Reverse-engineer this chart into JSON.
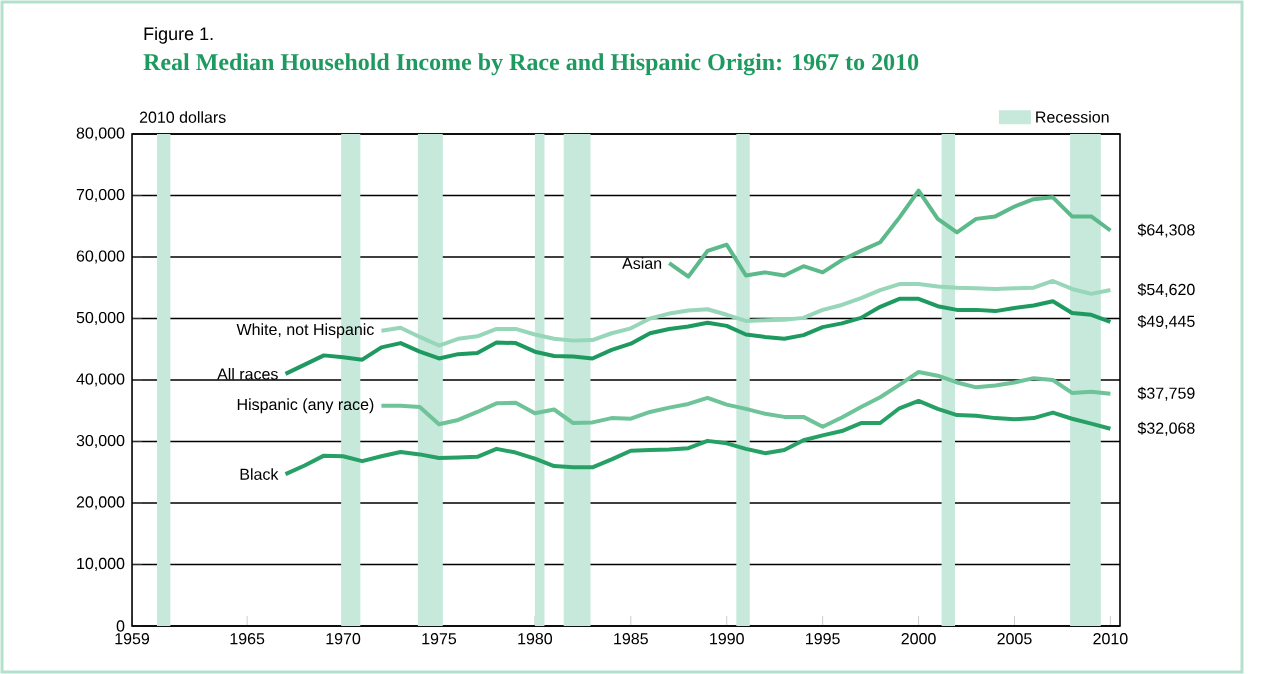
{
  "chart_data": {
    "type": "line",
    "title": "Real Median Household Income by Race and Hispanic Origin: 1967 to 2010",
    "ylabel": "2010 dollars",
    "annotations": [
      "Figure 1."
    ],
    "xlim": [
      1959,
      2010.5
    ],
    "xticks": [
      1959,
      1965,
      1970,
      1975,
      1980,
      1985,
      1990,
      1995,
      2000,
      2005,
      2010
    ],
    "ylim": [
      0,
      80000
    ],
    "yticks": [
      0,
      {
        "value": 10000,
        "label": "10,000"
      },
      {
        "value": 20000,
        "label": "20,000"
      },
      {
        "value": 30000,
        "label": "30,000"
      },
      {
        "value": 40000,
        "label": "40,000"
      },
      {
        "value": 50000,
        "label": "50,000"
      },
      {
        "value": 60000,
        "label": "60,000"
      },
      {
        "value": 70000,
        "label": "70,000"
      },
      {
        "value": 80000,
        "label": "80,000"
      }
    ],
    "grid": "y",
    "legend": "top right",
    "marker": "none",
    "line_style": "solid",
    "bands": [
      {
        "axis": "x",
        "from": 1960.3,
        "to": 1961.0,
        "label": "Recession",
        "color": "#c6e9dc"
      },
      {
        "axis": "x",
        "from": 1969.9,
        "to": 1970.9,
        "color": "#c6e9dc"
      },
      {
        "axis": "x",
        "from": 1973.9,
        "to": 1975.2,
        "color": "#c6e9dc"
      },
      {
        "axis": "x",
        "from": 1980.0,
        "to": 1980.5,
        "color": "#c6e9dc"
      },
      {
        "axis": "x",
        "from": 1981.5,
        "to": 1982.9,
        "color": "#c6e9dc"
      },
      {
        "axis": "x",
        "from": 1990.5,
        "to": 1991.2,
        "color": "#c6e9dc"
      },
      {
        "axis": "x",
        "from": 2001.2,
        "to": 2001.9,
        "color": "#c6e9dc"
      },
      {
        "axis": "x",
        "from": 2007.9,
        "to": 2009.5,
        "color": "#c6e9dc"
      }
    ],
    "series": [
      {
        "name": "Asian",
        "color": "#5cb98a",
        "x": [
          1987,
          1988,
          1989,
          1990,
          1991,
          1992,
          1993,
          1994,
          1995,
          1996,
          1997,
          1998,
          1999,
          2000,
          2001,
          2002,
          2003,
          2004,
          2005,
          2006,
          2007,
          2008,
          2009,
          2010
        ],
        "values": [
          59000,
          56800,
          61000,
          62000,
          57000,
          57500,
          57000,
          58500,
          57500,
          59500,
          61000,
          62400,
          66400,
          70800,
          66200,
          64000,
          66200,
          66600,
          68200,
          69400,
          69700,
          66600,
          66600,
          64308
        ],
        "value_labels": [
          null,
          null,
          null,
          null,
          null,
          null,
          null,
          null,
          null,
          null,
          null,
          null,
          null,
          null,
          null,
          null,
          null,
          null,
          null,
          null,
          null,
          null,
          null,
          "$64,308"
        ]
      },
      {
        "name": "White, not Hispanic",
        "color": "#97d6b8",
        "x": [
          1972,
          1973,
          1974,
          1975,
          1976,
          1977,
          1978,
          1979,
          1980,
          1981,
          1982,
          1983,
          1984,
          1985,
          1986,
          1987,
          1988,
          1989,
          1990,
          1991,
          1992,
          1993,
          1994,
          1995,
          1996,
          1997,
          1998,
          1999,
          2000,
          2001,
          2002,
          2003,
          2004,
          2005,
          2006,
          2007,
          2008,
          2009,
          2010
        ],
        "values": [
          48000,
          48500,
          47000,
          45600,
          46700,
          47100,
          48300,
          48300,
          47400,
          46700,
          46400,
          46500,
          47600,
          48400,
          50000,
          50800,
          51300,
          51500,
          50600,
          49600,
          49700,
          49800,
          50100,
          51400,
          52200,
          53300,
          54600,
          55600,
          55600,
          55200,
          55000,
          54900,
          54800,
          54900,
          55000,
          56100,
          54800,
          54000,
          54620
        ],
        "value_labels": [
          null,
          null,
          null,
          null,
          null,
          null,
          null,
          null,
          null,
          null,
          null,
          null,
          null,
          null,
          null,
          null,
          null,
          null,
          null,
          null,
          null,
          null,
          null,
          null,
          null,
          null,
          null,
          null,
          null,
          null,
          null,
          null,
          null,
          null,
          null,
          null,
          null,
          null,
          "$54,620"
        ]
      },
      {
        "name": "All races",
        "color": "#1e9a60",
        "x": [
          1967,
          1968,
          1969,
          1970,
          1971,
          1972,
          1973,
          1974,
          1975,
          1976,
          1977,
          1978,
          1979,
          1980,
          1981,
          1982,
          1983,
          1984,
          1985,
          1986,
          1987,
          1988,
          1989,
          1990,
          1991,
          1992,
          1993,
          1994,
          1995,
          1996,
          1997,
          1998,
          1999,
          2000,
          2001,
          2002,
          2003,
          2004,
          2005,
          2006,
          2007,
          2008,
          2009,
          2010
        ],
        "values": [
          41000,
          42500,
          44000,
          43700,
          43300,
          45300,
          46000,
          44600,
          43500,
          44200,
          44400,
          46100,
          46000,
          44600,
          43900,
          43800,
          43500,
          44900,
          45900,
          47600,
          48300,
          48700,
          49300,
          48800,
          47400,
          47000,
          46700,
          47300,
          48600,
          49200,
          50100,
          51900,
          53200,
          53200,
          52000,
          51400,
          51400,
          51200,
          51700,
          52100,
          52800,
          50900,
          50600,
          49445
        ],
        "value_labels": [
          null,
          null,
          null,
          null,
          null,
          null,
          null,
          null,
          null,
          null,
          null,
          null,
          null,
          null,
          null,
          null,
          null,
          null,
          null,
          null,
          null,
          null,
          null,
          null,
          null,
          null,
          null,
          null,
          null,
          null,
          null,
          null,
          null,
          null,
          null,
          null,
          null,
          null,
          null,
          null,
          null,
          null,
          null,
          "$49,445"
        ]
      },
      {
        "name": "Hispanic (any race)",
        "color": "#6fc398",
        "x": [
          1972,
          1973,
          1974,
          1975,
          1976,
          1977,
          1978,
          1979,
          1980,
          1981,
          1982,
          1983,
          1984,
          1985,
          1986,
          1987,
          1988,
          1989,
          1990,
          1991,
          1992,
          1993,
          1994,
          1995,
          1996,
          1997,
          1998,
          1999,
          2000,
          2001,
          2002,
          2003,
          2004,
          2005,
          2006,
          2007,
          2008,
          2009,
          2010
        ],
        "values": [
          35800,
          35800,
          35600,
          32800,
          33500,
          34800,
          36200,
          36300,
          34600,
          35200,
          33000,
          33100,
          33800,
          33700,
          34800,
          35500,
          36100,
          37100,
          36000,
          35300,
          34500,
          34000,
          34000,
          32400,
          33900,
          35600,
          37200,
          39200,
          41300,
          40700,
          39600,
          38800,
          39100,
          39600,
          40300,
          40000,
          37900,
          38100,
          37759
        ],
        "value_labels": [
          null,
          null,
          null,
          null,
          null,
          null,
          null,
          null,
          null,
          null,
          null,
          null,
          null,
          null,
          null,
          null,
          null,
          null,
          null,
          null,
          null,
          null,
          null,
          null,
          null,
          null,
          null,
          null,
          null,
          null,
          null,
          null,
          null,
          null,
          null,
          null,
          null,
          null,
          "$37,759"
        ]
      },
      {
        "name": "Black",
        "color": "#27a066",
        "x": [
          1967,
          1968,
          1969,
          1970,
          1971,
          1972,
          1973,
          1974,
          1975,
          1976,
          1977,
          1978,
          1979,
          1980,
          1981,
          1982,
          1983,
          1984,
          1985,
          1986,
          1987,
          1988,
          1989,
          1990,
          1991,
          1992,
          1993,
          1994,
          1995,
          1996,
          1997,
          1998,
          1999,
          2000,
          2001,
          2002,
          2003,
          2004,
          2005,
          2006,
          2007,
          2008,
          2009,
          2010
        ],
        "values": [
          24700,
          26100,
          27700,
          27600,
          26800,
          27600,
          28300,
          27900,
          27300,
          27400,
          27500,
          28800,
          28200,
          27200,
          26000,
          25800,
          25800,
          27100,
          28500,
          28600,
          28700,
          28900,
          30100,
          29700,
          28800,
          28100,
          28600,
          30200,
          31000,
          31700,
          33000,
          33000,
          35400,
          36600,
          35300,
          34300,
          34200,
          33800,
          33600,
          33800,
          34700,
          33700,
          32900,
          32068
        ],
        "value_labels": [
          null,
          null,
          null,
          null,
          null,
          null,
          null,
          null,
          null,
          null,
          null,
          null,
          null,
          null,
          null,
          null,
          null,
          null,
          null,
          null,
          null,
          null,
          null,
          null,
          null,
          null,
          null,
          null,
          null,
          null,
          null,
          null,
          null,
          null,
          null,
          null,
          null,
          null,
          null,
          null,
          null,
          null,
          null,
          "$32,068"
        ]
      }
    ]
  }
}
